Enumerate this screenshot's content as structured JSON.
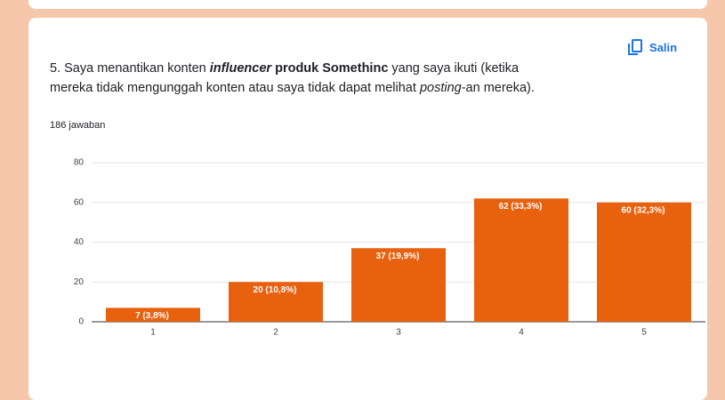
{
  "ui": {
    "copy_button": "Salin"
  },
  "chart_data": {
    "type": "bar",
    "title": [
      "5. Saya menantikan konten ",
      "influencer",
      " produk Somethinc",
      " yang saya ikuti (ketika",
      "mereka tidak mengunggah konten atau saya tidak dapat melihat ",
      "posting",
      "-an mereka)."
    ],
    "subtitle": "186 jawaban",
    "categories": [
      "1",
      "2",
      "3",
      "4",
      "5"
    ],
    "values": [
      7,
      20,
      37,
      62,
      60
    ],
    "value_labels": [
      "7 (3,8%)",
      "20 (10,8%)",
      "37 (19,9%)",
      "62 (33,3%)",
      "60 (32,3%)"
    ],
    "color": "#e8610f",
    "ylim": [
      0,
      80
    ],
    "yticks": [
      0,
      20,
      40,
      60,
      80
    ],
    "grid": true
  }
}
